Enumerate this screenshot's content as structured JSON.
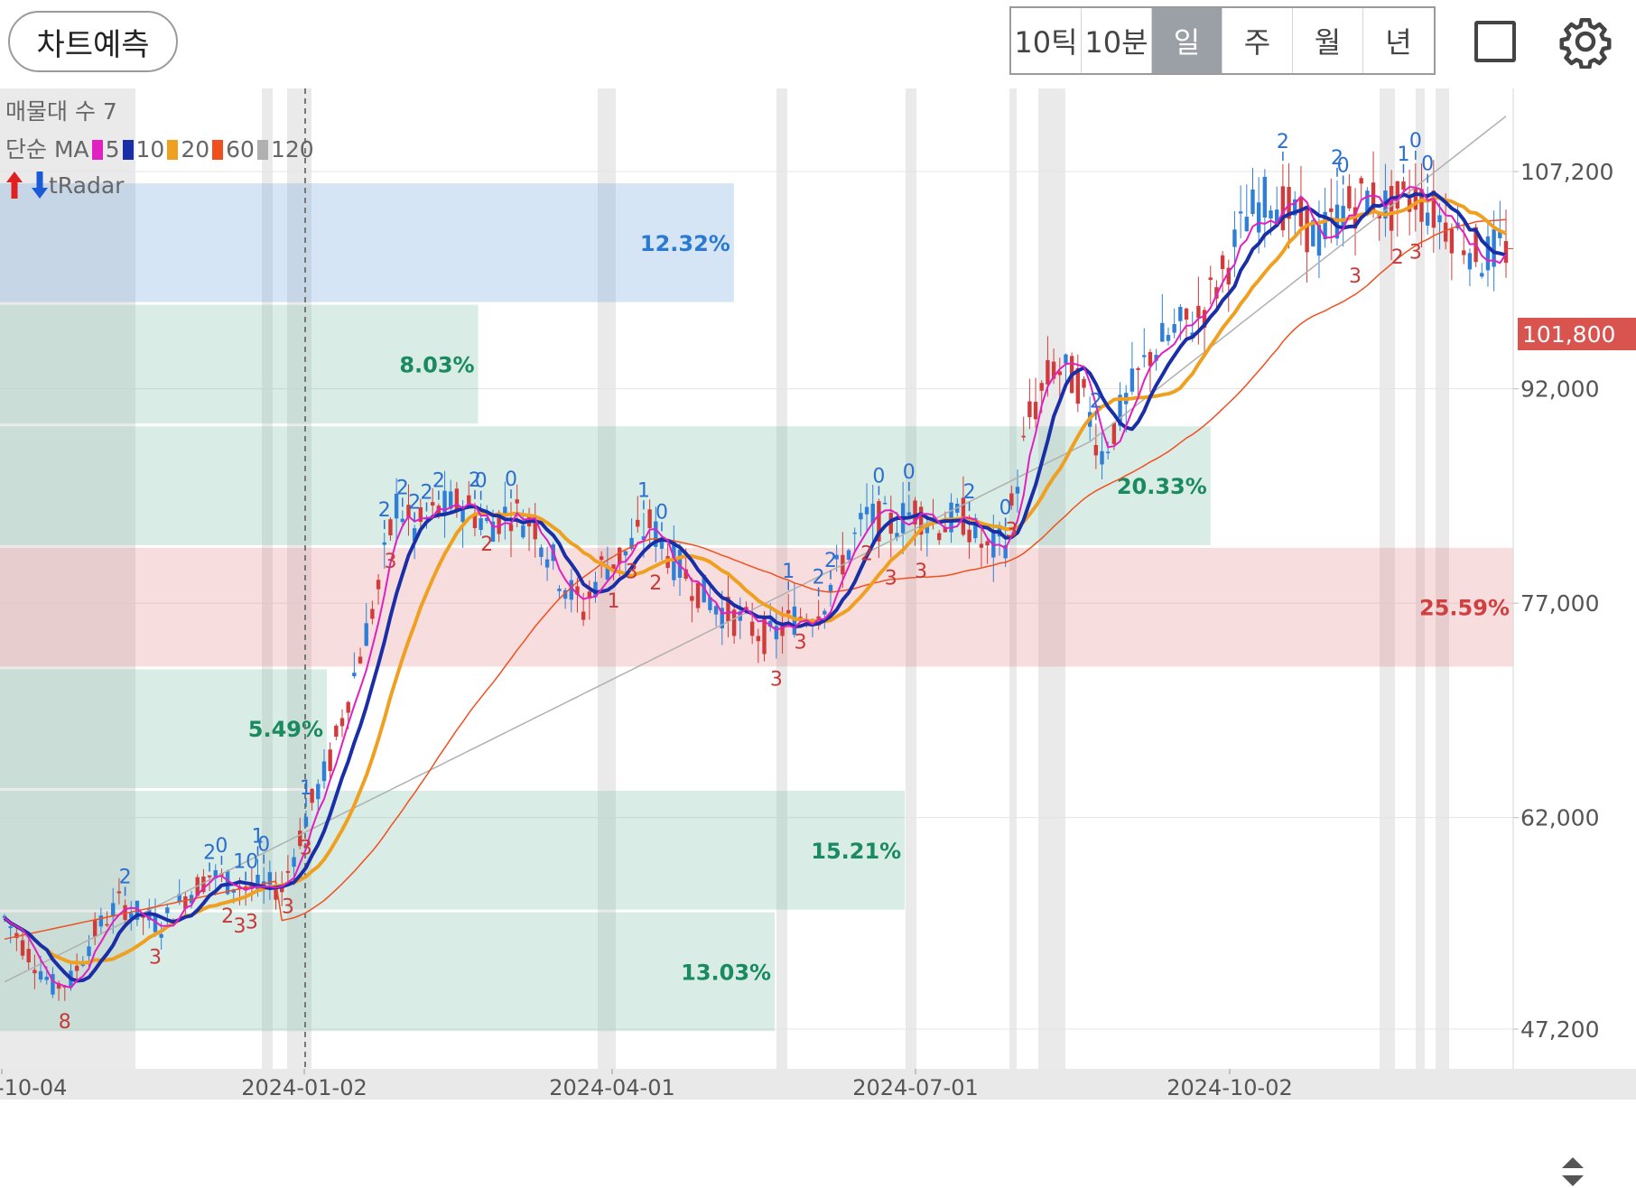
{
  "toolbar": {
    "predict_label": "차트예측",
    "periods": [
      "10틱",
      "10분",
      "일",
      "주",
      "월",
      "년"
    ],
    "active_period": "일",
    "icons": [
      "square-icon",
      "gear-icon"
    ]
  },
  "legend": {
    "volume_profile": "매물대 수 7",
    "ma_label": "단순 MA",
    "ma_periods": [
      "5",
      "10",
      "20",
      "60",
      "120"
    ],
    "ma_colors": [
      "#e020c0",
      "#1a2ea8",
      "#f0a020",
      "#f05020",
      "#b0b0b0"
    ],
    "radar_label": "tRadar"
  },
  "current_price_label": "101,800",
  "chart_data": {
    "type": "candlestick",
    "y_ticks": [
      "107,200",
      "92,000",
      "77,000",
      "62,000",
      "47,200"
    ],
    "y_tick_values": [
      107200,
      92000,
      77000,
      62000,
      47200
    ],
    "ylim": [
      42000,
      114000
    ],
    "x_ticks": [
      "-10-04",
      "2024-01-02",
      "2024-04-01",
      "2024-07-01",
      "2024-10-02"
    ],
    "current_price": 101800,
    "volume_profile": [
      {
        "low": 98000,
        "high": 106500,
        "percent": "12.32%",
        "color": "blue"
      },
      {
        "low": 89500,
        "high": 98000,
        "percent": "8.03%",
        "color": "green"
      },
      {
        "low": 81000,
        "high": 89500,
        "percent": "20.33%",
        "color": "green"
      },
      {
        "low": 72500,
        "high": 81000,
        "percent": "25.59%",
        "color": "red"
      },
      {
        "low": 64000,
        "high": 72500,
        "percent": "5.49%",
        "color": "green"
      },
      {
        "low": 55500,
        "high": 64000,
        "percent": "15.21%",
        "color": "green"
      },
      {
        "low": 47000,
        "high": 55500,
        "percent": "13.03%",
        "color": "green"
      }
    ],
    "series": [
      {
        "name": "5",
        "color": "#e020c0"
      },
      {
        "name": "10",
        "color": "#1a2ea8"
      },
      {
        "name": "20",
        "color": "#f0a020"
      },
      {
        "name": "60",
        "color": "#f05020"
      },
      {
        "name": "120",
        "color": "#b0b0b0"
      }
    ],
    "close_path": [
      [
        0,
        55000
      ],
      [
        4,
        52500
      ],
      [
        8,
        50200
      ],
      [
        11,
        50600
      ],
      [
        15,
        54000
      ],
      [
        19,
        56000
      ],
      [
        22,
        55300
      ],
      [
        26,
        54500
      ],
      [
        30,
        56500
      ],
      [
        34,
        58000
      ],
      [
        37,
        57500
      ],
      [
        41,
        57000
      ],
      [
        44,
        57200
      ],
      [
        46,
        57000
      ],
      [
        50,
        62000
      ],
      [
        54,
        66000
      ],
      [
        58,
        72000
      ],
      [
        62,
        78000
      ],
      [
        65,
        84000
      ],
      [
        68,
        82000
      ],
      [
        72,
        83500
      ],
      [
        76,
        84000
      ],
      [
        80,
        82500
      ],
      [
        84,
        83500
      ],
      [
        88,
        82500
      ],
      [
        92,
        79000
      ],
      [
        96,
        76500
      ],
      [
        99,
        79500
      ],
      [
        103,
        80500
      ],
      [
        107,
        82500
      ],
      [
        111,
        80000
      ],
      [
        115,
        78000
      ],
      [
        119,
        76500
      ],
      [
        123,
        75500
      ],
      [
        127,
        74500
      ],
      [
        131,
        76000
      ],
      [
        135,
        76500
      ],
      [
        139,
        80000
      ],
      [
        143,
        83000
      ],
      [
        147,
        82500
      ],
      [
        151,
        83500
      ],
      [
        155,
        82500
      ],
      [
        159,
        83000
      ],
      [
        163,
        80500
      ],
      [
        166,
        81500
      ],
      [
        170,
        90000
      ],
      [
        174,
        93500
      ],
      [
        178,
        92500
      ],
      [
        182,
        87500
      ],
      [
        186,
        91000
      ],
      [
        190,
        94500
      ],
      [
        194,
        96000
      ],
      [
        198,
        97000
      ],
      [
        202,
        100000
      ],
      [
        206,
        104000
      ],
      [
        210,
        105500
      ],
      [
        214,
        104000
      ],
      [
        218,
        102500
      ],
      [
        222,
        104500
      ],
      [
        226,
        105500
      ],
      [
        230,
        104500
      ],
      [
        234,
        105500
      ],
      [
        238,
        104000
      ],
      [
        242,
        102500
      ],
      [
        245,
        101200
      ],
      [
        248,
        101800
      ]
    ],
    "signal_marks": [
      {
        "t": 10,
        "label": "8",
        "pos": "below"
      },
      {
        "t": 20,
        "label": "2",
        "pos": "above"
      },
      {
        "t": 25,
        "label": "3",
        "pos": "below"
      },
      {
        "t": 34,
        "label": "2",
        "pos": "above"
      },
      {
        "t": 36,
        "label": "0",
        "pos": "above"
      },
      {
        "t": 40,
        "label": "10",
        "pos": "above"
      },
      {
        "t": 42,
        "label": "1",
        "pos": "above"
      },
      {
        "t": 43,
        "label": "0",
        "pos": "above"
      },
      {
        "t": 37,
        "label": "2",
        "pos": "below"
      },
      {
        "t": 39,
        "label": "3",
        "pos": "below"
      },
      {
        "t": 41,
        "label": "3",
        "pos": "below"
      },
      {
        "t": 47,
        "label": "3",
        "pos": "below"
      },
      {
        "t": 50,
        "label": "3",
        "pos": "below"
      },
      {
        "t": 50,
        "label": "1",
        "pos": "above"
      },
      {
        "t": 63,
        "label": "2",
        "pos": "above"
      },
      {
        "t": 64,
        "label": "3",
        "pos": "below"
      },
      {
        "t": 66,
        "label": "2",
        "pos": "above"
      },
      {
        "t": 68,
        "label": "2",
        "pos": "above"
      },
      {
        "t": 70,
        "label": "2",
        "pos": "above"
      },
      {
        "t": 72,
        "label": "2",
        "pos": "above"
      },
      {
        "t": 78,
        "label": "2",
        "pos": "above"
      },
      {
        "t": 79,
        "label": "0",
        "pos": "above"
      },
      {
        "t": 80,
        "label": "2",
        "pos": "below"
      },
      {
        "t": 84,
        "label": "0",
        "pos": "above"
      },
      {
        "t": 106,
        "label": "1",
        "pos": "above"
      },
      {
        "t": 109,
        "label": "0",
        "pos": "above"
      },
      {
        "t": 108,
        "label": "2",
        "pos": "below"
      },
      {
        "t": 101,
        "label": "1",
        "pos": "below"
      },
      {
        "t": 104,
        "label": "3",
        "pos": "below"
      },
      {
        "t": 128,
        "label": "3",
        "pos": "below"
      },
      {
        "t": 130,
        "label": "1",
        "pos": "above"
      },
      {
        "t": 132,
        "label": "3",
        "pos": "below"
      },
      {
        "t": 135,
        "label": "2",
        "pos": "above"
      },
      {
        "t": 137,
        "label": "2",
        "pos": "above"
      },
      {
        "t": 143,
        "label": "2",
        "pos": "below"
      },
      {
        "t": 145,
        "label": "0",
        "pos": "above"
      },
      {
        "t": 147,
        "label": "3",
        "pos": "below"
      },
      {
        "t": 150,
        "label": "0",
        "pos": "above"
      },
      {
        "t": 152,
        "label": "3",
        "pos": "below"
      },
      {
        "t": 160,
        "label": "2",
        "pos": "above"
      },
      {
        "t": 166,
        "label": "0",
        "pos": "above"
      },
      {
        "t": 167,
        "label": "3",
        "pos": "below"
      },
      {
        "t": 181,
        "label": "2",
        "pos": "above"
      },
      {
        "t": 212,
        "label": "2",
        "pos": "above"
      },
      {
        "t": 221,
        "label": "2",
        "pos": "above"
      },
      {
        "t": 222,
        "label": "0",
        "pos": "above"
      },
      {
        "t": 224,
        "label": "3",
        "pos": "below"
      },
      {
        "t": 232,
        "label": "1",
        "pos": "above"
      },
      {
        "t": 234,
        "label": "0",
        "pos": "above"
      },
      {
        "t": 236,
        "label": "0",
        "pos": "above"
      },
      {
        "t": 231,
        "label": "2",
        "pos": "below"
      },
      {
        "t": 234,
        "label": "3",
        "pos": "below"
      }
    ]
  }
}
